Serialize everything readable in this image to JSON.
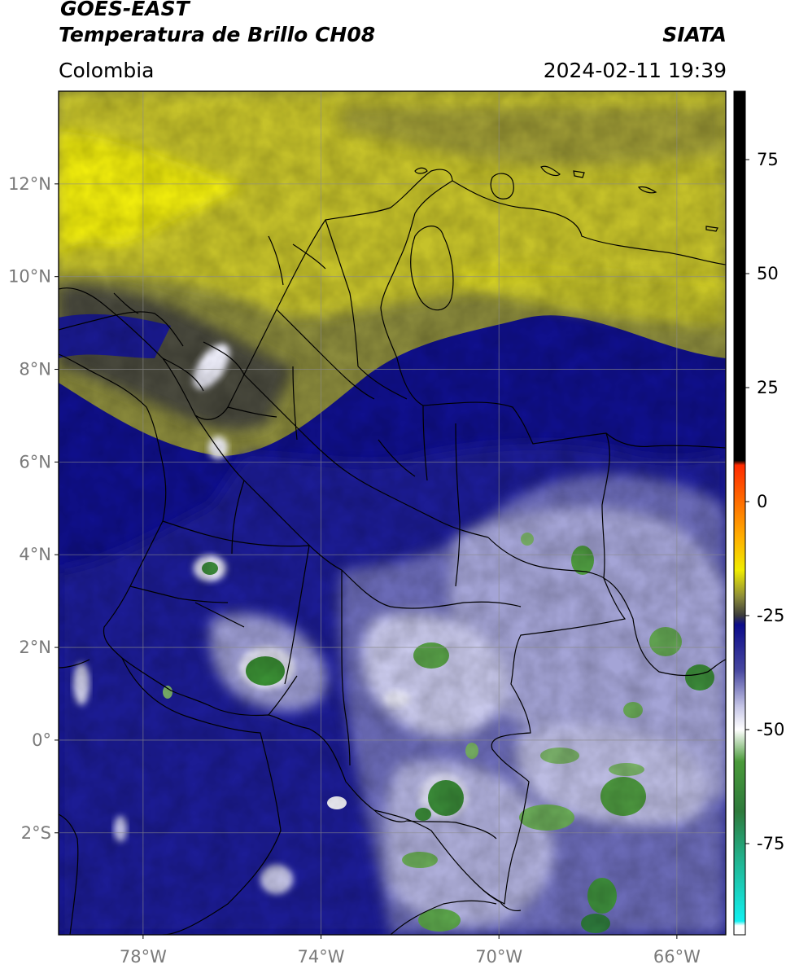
{
  "header": {
    "satellite": "GOES-EAST",
    "product": "Temperatura de Brillo CH08",
    "agency": "SIATA",
    "region": "Colombia",
    "datetime": "2024-02-11 19:39"
  },
  "map": {
    "lat_labels": [
      "12°N",
      "10°N",
      "8°N",
      "6°N",
      "4°N",
      "2°N",
      "0°",
      "2°S"
    ],
    "lon_labels": [
      "78°W",
      "74°W",
      "70°W",
      "66°W"
    ],
    "extent": {
      "lon_min": -79.9,
      "lon_max": -64.9,
      "lat_min": -4.2,
      "lat_max": 14.0
    }
  },
  "colorbar": {
    "ticks": [
      "75",
      "50",
      "25",
      "0",
      "-25",
      "-50",
      "-75"
    ],
    "tick_values": [
      75,
      50,
      25,
      0,
      -25,
      -50,
      -75
    ],
    "vmin": -95,
    "vmax": 90,
    "stops": [
      {
        "v": 90,
        "c": "#000000"
      },
      {
        "v": 9,
        "c": "#000000"
      },
      {
        "v": 8,
        "c": "#ff2a00"
      },
      {
        "v": -8,
        "c": "#ffb000"
      },
      {
        "v": -15,
        "c": "#f0ec00"
      },
      {
        "v": -21,
        "c": "#8a8a3a"
      },
      {
        "v": -25,
        "c": "#3b3b3b"
      },
      {
        "v": -27,
        "c": "#0c0c8a"
      },
      {
        "v": -37,
        "c": "#4848a0"
      },
      {
        "v": -45,
        "c": "#c6c6e6"
      },
      {
        "v": -50,
        "c": "#ffffff"
      },
      {
        "v": -57,
        "c": "#4a9a3a"
      },
      {
        "v": -68,
        "c": "#2e7a3c"
      },
      {
        "v": -78,
        "c": "#22b08a"
      },
      {
        "v": -92,
        "c": "#12f0f0"
      },
      {
        "v": -93,
        "c": "#ffffff"
      }
    ]
  },
  "colors": {
    "cold_blue": "#10108c",
    "warm_yellow": "#e6e20c",
    "dark_olive": "#4a4a3c",
    "convective_white": "#eeeefa",
    "deep_green": "#2e8a36"
  }
}
